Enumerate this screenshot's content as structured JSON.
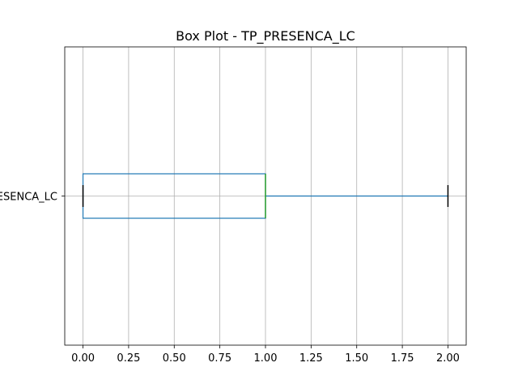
{
  "chart_data": {
    "type": "box",
    "title": "Box Plot - TP_PRESENCA_LC",
    "orientation": "horizontal",
    "categories": [
      "TP_PRESENCA_LC"
    ],
    "series": [
      {
        "name": "TP_PRESENCA_LC",
        "whisker_low": 0,
        "q1": 0,
        "median": 1,
        "q3": 1,
        "whisker_high": 2
      }
    ],
    "xlim": [
      -0.1,
      2.1
    ],
    "xticks": [
      0.0,
      0.25,
      0.5,
      0.75,
      1.0,
      1.25,
      1.5,
      1.75,
      2.0
    ],
    "xtick_labels": [
      "0.00",
      "0.25",
      "0.50",
      "0.75",
      "1.00",
      "1.25",
      "1.50",
      "1.75",
      "2.00"
    ],
    "grid": true,
    "colors": {
      "box": "#1f77b4",
      "median": "#2ca02c",
      "caps": "#000000",
      "grid": "#b0b0b0"
    }
  }
}
